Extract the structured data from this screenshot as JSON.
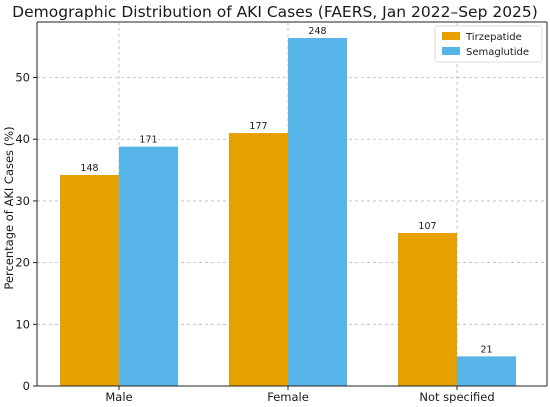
{
  "chart_data": {
    "type": "bar",
    "title": "Demographic Distribution of AKI Cases (FAERS, Jan 2022–Sep 2025)",
    "xlabel": "",
    "ylabel": "Percentage of AKI Cases (%)",
    "categories": [
      "Male",
      "Female",
      "Not specified"
    ],
    "series": [
      {
        "name": "Tirzepatide",
        "color": "#E6A100",
        "values": [
          34.2,
          41.0,
          24.8
        ],
        "labels": [
          "148",
          "177",
          "107"
        ]
      },
      {
        "name": "Semaglutide",
        "color": "#56B4E9",
        "values": [
          38.8,
          56.4,
          4.8
        ],
        "labels": [
          "171",
          "248",
          "21"
        ]
      }
    ],
    "ylim": [
      0,
      59
    ],
    "yticks": [
      0,
      10,
      20,
      30,
      40,
      50
    ],
    "grid": true,
    "legend_position": "top-right"
  }
}
